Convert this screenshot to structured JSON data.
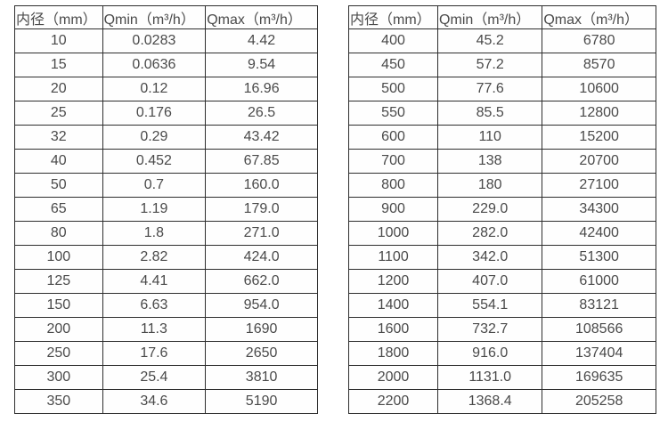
{
  "colors": {
    "border": "#2e2e2e",
    "text": "#4a4a4a",
    "background": "#ffffff"
  },
  "tables": {
    "left": {
      "headers": [
        "内径（mm）",
        "Qmin（m³/h）",
        "Qmax（m³/h）"
      ],
      "rows": [
        [
          "10",
          "0.0283",
          "4.42"
        ],
        [
          "15",
          "0.0636",
          "9.54"
        ],
        [
          "20",
          "0.12",
          "16.96"
        ],
        [
          "25",
          "0.176",
          "26.5"
        ],
        [
          "32",
          "0.29",
          "43.42"
        ],
        [
          "40",
          "0.452",
          "67.85"
        ],
        [
          "50",
          "0.7",
          "160.0"
        ],
        [
          "65",
          "1.19",
          "179.0"
        ],
        [
          "80",
          "1.8",
          "271.0"
        ],
        [
          "100",
          "2.82",
          "424.0"
        ],
        [
          "125",
          "4.41",
          "662.0"
        ],
        [
          "150",
          "6.63",
          "954.0"
        ],
        [
          "200",
          "11.3",
          "1690"
        ],
        [
          "250",
          "17.6",
          "2650"
        ],
        [
          "300",
          "25.4",
          "3810"
        ],
        [
          "350",
          "34.6",
          "5190"
        ]
      ]
    },
    "right": {
      "headers": [
        "内径（mm）",
        "Qmin（m³/h）",
        "Qmax（m³/h）"
      ],
      "rows": [
        [
          "400",
          "45.2",
          "6780"
        ],
        [
          "450",
          "57.2",
          "8570"
        ],
        [
          "500",
          "77.6",
          "10600"
        ],
        [
          "550",
          "85.5",
          "12800"
        ],
        [
          "600",
          "110",
          "15200"
        ],
        [
          "700",
          "138",
          "20700"
        ],
        [
          "800",
          "180",
          "27100"
        ],
        [
          "900",
          "229.0",
          "34300"
        ],
        [
          "1000",
          "282.0",
          "42400"
        ],
        [
          "1100",
          "342.0",
          "51300"
        ],
        [
          "1200",
          "407.0",
          "61000"
        ],
        [
          "1400",
          "554.1",
          "83121"
        ],
        [
          "1600",
          "732.7",
          "108566"
        ],
        [
          "1800",
          "916.0",
          "137404"
        ],
        [
          "2000",
          "1131.0",
          "169635"
        ],
        [
          "2200",
          "1368.4",
          "205258"
        ]
      ]
    }
  }
}
